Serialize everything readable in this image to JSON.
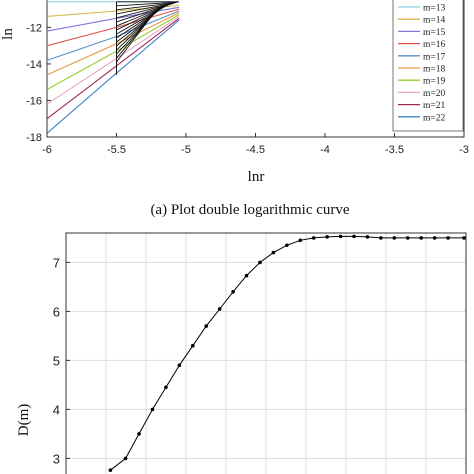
{
  "chart_data": [
    {
      "type": "line",
      "title": "",
      "caption": "(a) Plot double logarithmic curve",
      "xlabel": "lnr",
      "ylabel": "ln",
      "xlim": [
        -6,
        -3
      ],
      "ylim": [
        -18,
        -10.5
      ],
      "grid": false,
      "x_ticks": [
        -6,
        -5.5,
        -5,
        -4.5,
        -4,
        -3.5,
        -3
      ],
      "x_tick_labels": [
        "-6",
        "-5.5",
        "-5",
        "-4.5",
        "-4",
        "-3.5",
        "-3"
      ],
      "y_ticks": [
        -18,
        -16,
        -14,
        -12
      ],
      "y_tick_labels": [
        "-18",
        "-16",
        "-14",
        "-12"
      ],
      "legend_position": "right",
      "series": [
        {
          "name": "m=13",
          "color": "#8fd0e8",
          "x": [
            -6.0,
            -5.5,
            -5.05
          ],
          "y": [
            -10.6,
            -10.6,
            -10.6
          ]
        },
        {
          "name": "m=14",
          "color": "#d8b84a",
          "x": [
            -6.0,
            -5.5,
            -5.05
          ],
          "y": [
            -11.4,
            -11.1,
            -10.8
          ]
        },
        {
          "name": "m=15",
          "color": "#7d7ad8",
          "x": [
            -6.0,
            -5.5,
            -5.05
          ],
          "y": [
            -12.2,
            -11.5,
            -10.9
          ]
        },
        {
          "name": "m=16",
          "color": "#d9544a",
          "x": [
            -6.0,
            -5.5,
            -5.05
          ],
          "y": [
            -13.0,
            -12.0,
            -11.0
          ]
        },
        {
          "name": "m=17",
          "color": "#5b92c8",
          "x": [
            -6.0,
            -5.5,
            -5.05
          ],
          "y": [
            -13.8,
            -12.5,
            -11.1
          ]
        },
        {
          "name": "m=18",
          "color": "#e89a42",
          "x": [
            -6.0,
            -5.5,
            -5.05
          ],
          "y": [
            -14.6,
            -12.9,
            -11.2
          ]
        },
        {
          "name": "m=19",
          "color": "#9acd32",
          "x": [
            -6.0,
            -5.5,
            -5.05
          ],
          "y": [
            -15.4,
            -13.3,
            -11.3
          ]
        },
        {
          "name": "m=20",
          "color": "#e9a6c6",
          "x": [
            -6.0,
            -5.5,
            -5.05
          ],
          "y": [
            -16.2,
            -13.7,
            -11.4
          ]
        },
        {
          "name": "m=21",
          "color": "#a0285a",
          "x": [
            -6.0,
            -5.5,
            -5.05
          ],
          "y": [
            -17.0,
            -14.1,
            -11.5
          ]
        },
        {
          "name": "m=22",
          "color": "#3f83c6",
          "x": [
            -6.0,
            -5.5,
            -5.05
          ],
          "y": [
            -17.8,
            -14.5,
            -11.6
          ]
        }
      ]
    },
    {
      "type": "line",
      "title": "",
      "xlabel": "",
      "ylabel": "D(m)",
      "ylim": [
        2.6,
        7.6
      ],
      "xlim": [
        0,
        1
      ],
      "grid": true,
      "y_ticks": [
        3,
        4,
        5,
        6,
        7
      ],
      "y_tick_labels": [
        "3",
        "4",
        "5",
        "6",
        "7"
      ],
      "series": [
        {
          "name": "",
          "color": "#000000",
          "x": [
            0.0,
            0.043,
            0.081,
            0.119,
            0.157,
            0.195,
            0.233,
            0.271,
            0.309,
            0.347,
            0.385,
            0.423,
            0.461,
            0.499,
            0.537,
            0.575,
            0.613,
            0.651,
            0.689,
            0.727,
            0.765,
            0.803,
            0.841,
            0.879,
            0.917,
            0.955,
            1.0
          ],
          "y": [
            2.76,
            3.0,
            3.5,
            4.0,
            4.45,
            4.9,
            5.3,
            5.7,
            6.05,
            6.4,
            6.73,
            7.0,
            7.2,
            7.35,
            7.45,
            7.5,
            7.52,
            7.53,
            7.53,
            7.52,
            7.5,
            7.5,
            7.5,
            7.5,
            7.5,
            7.5,
            7.5
          ]
        }
      ]
    }
  ]
}
